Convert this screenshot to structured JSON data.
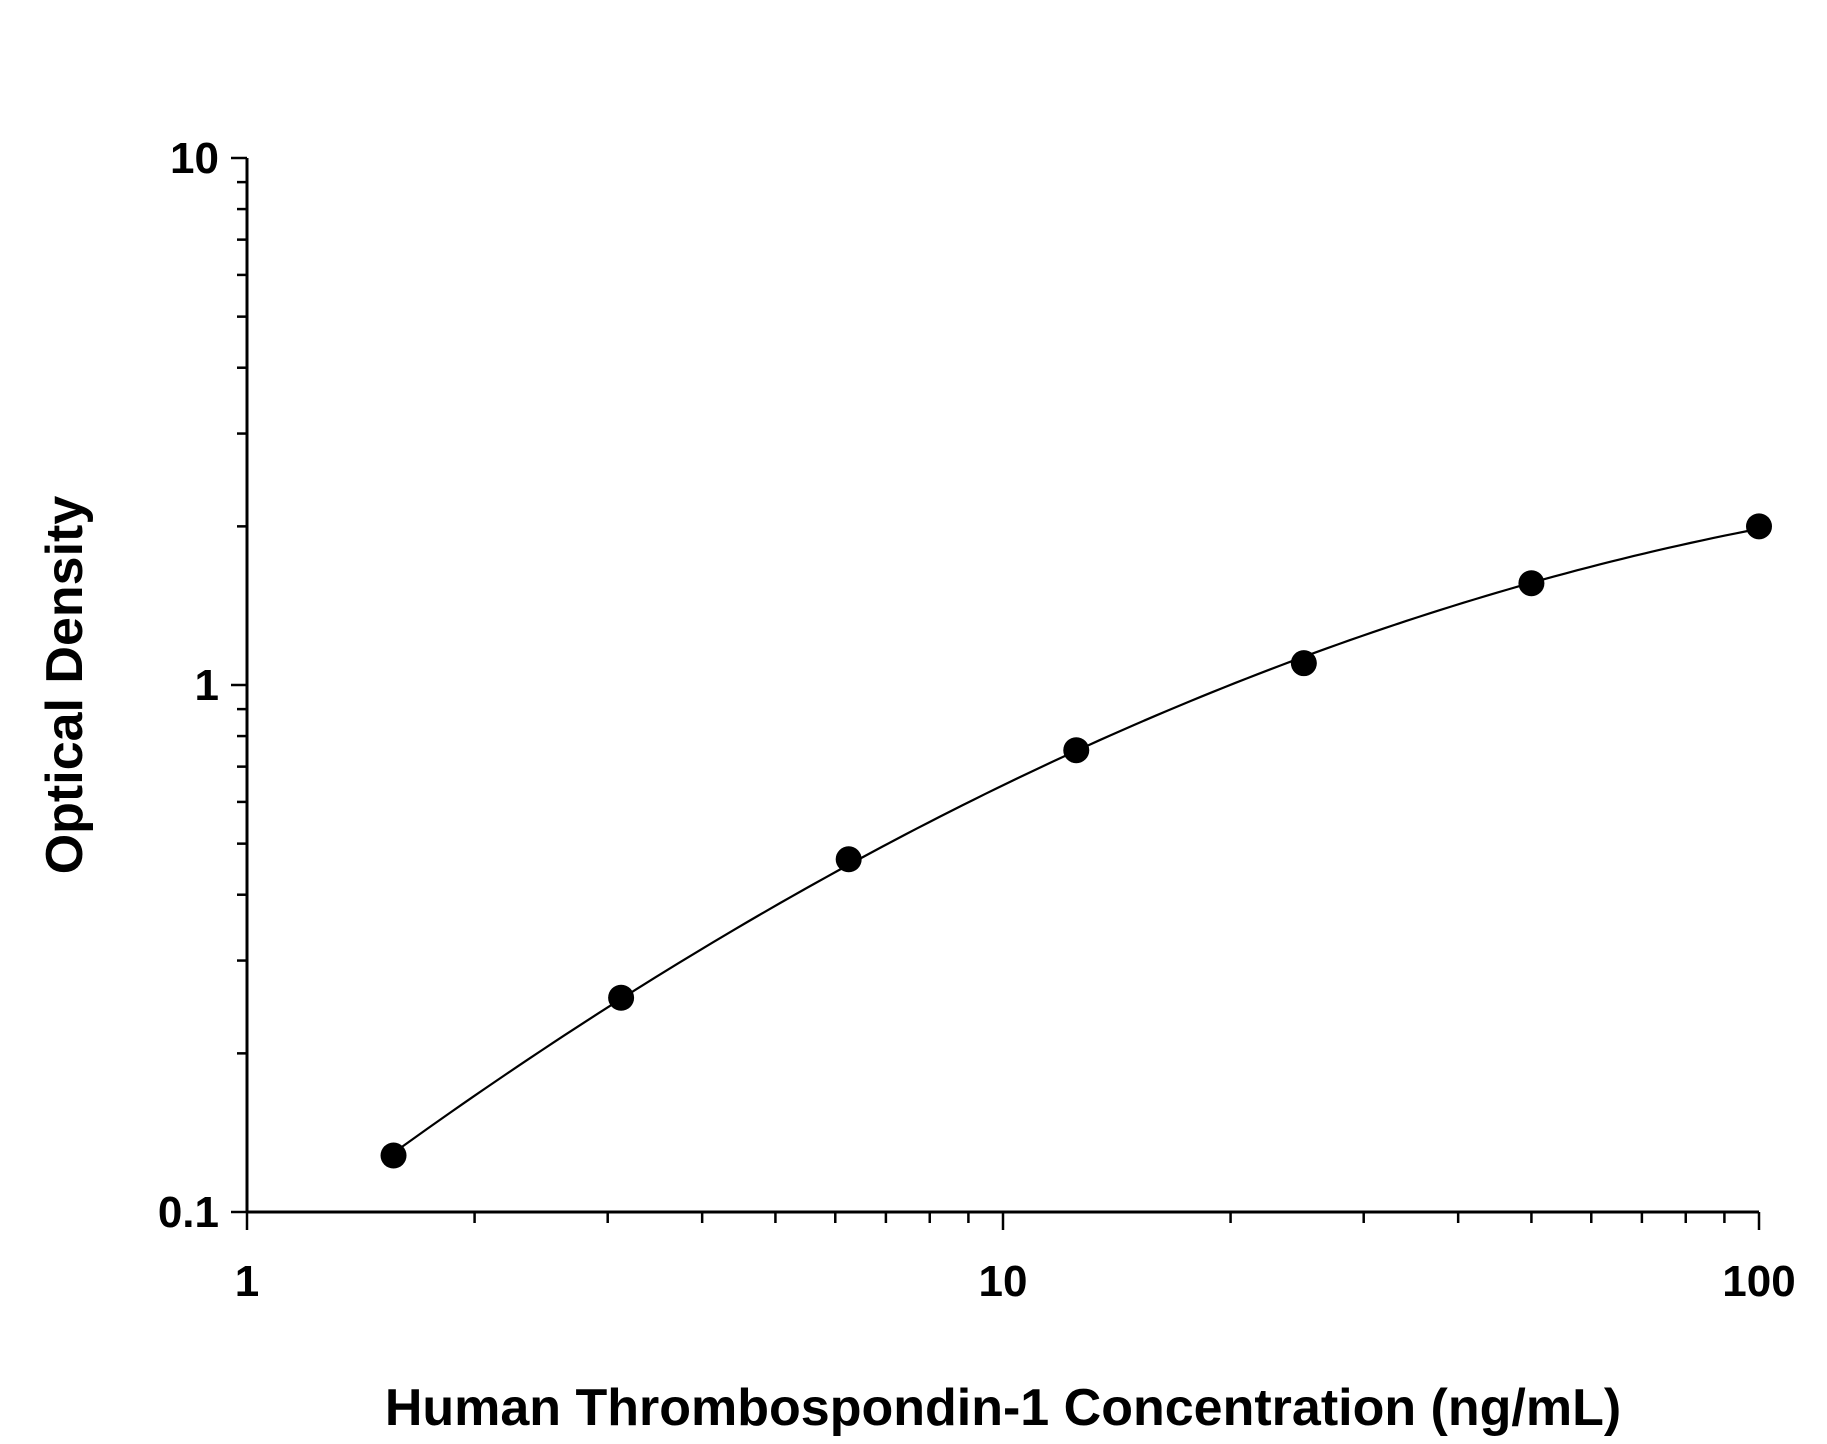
{
  "chart_data": {
    "type": "scatter",
    "title": "",
    "xlabel": "Human Thrombospondin-1 Concentration (ng/mL)",
    "ylabel": "Optical Density",
    "x_scale": "log",
    "y_scale": "log",
    "xlim": [
      1,
      100
    ],
    "ylim": [
      0.1,
      10
    ],
    "x_ticks": [
      {
        "value": 1,
        "label": "1"
      },
      {
        "value": 10,
        "label": "10"
      },
      {
        "value": 100,
        "label": "100"
      }
    ],
    "y_ticks": [
      {
        "value": 0.1,
        "label": "0.1"
      },
      {
        "value": 1,
        "label": "1"
      },
      {
        "value": 10,
        "label": "10"
      }
    ],
    "grid": false,
    "legend": "none",
    "colors": {
      "points": "#000000",
      "curve": "#000000",
      "axes": "#000000"
    },
    "series": [
      {
        "points": [
          {
            "x": 1.5625,
            "y": 0.128
          },
          {
            "x": 3.125,
            "y": 0.255
          },
          {
            "x": 6.25,
            "y": 0.467
          },
          {
            "x": 12.5,
            "y": 0.752
          },
          {
            "x": 25,
            "y": 1.1
          },
          {
            "x": 50,
            "y": 1.56
          },
          {
            "x": 100,
            "y": 2.0
          }
        ],
        "fit_curve": true
      }
    ]
  }
}
